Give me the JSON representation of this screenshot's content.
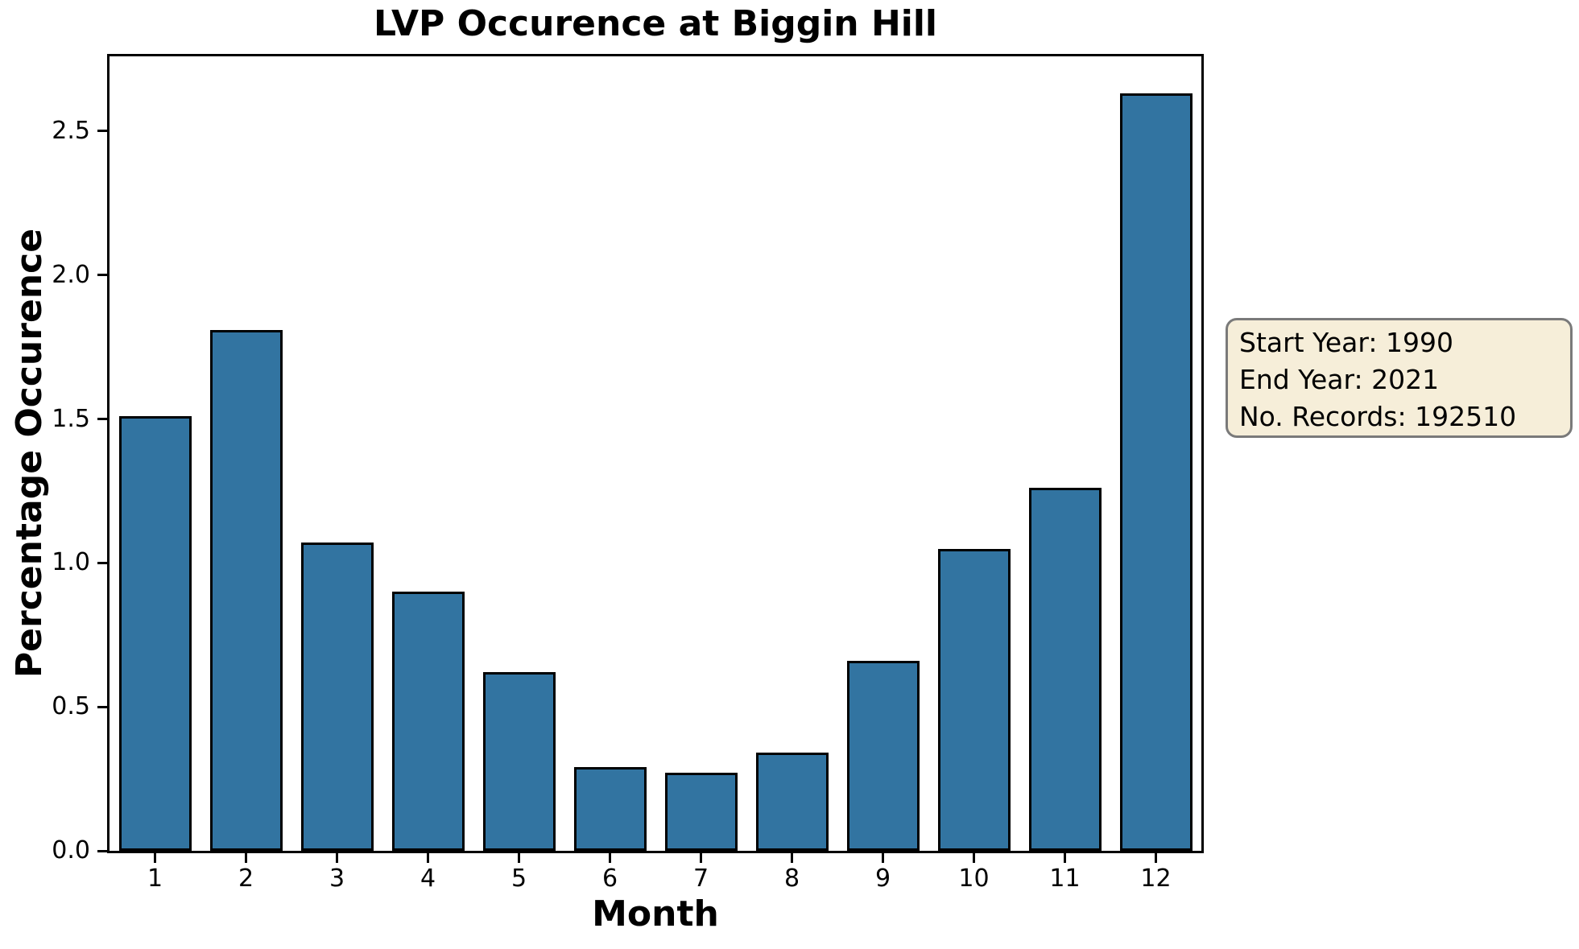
{
  "chart_data": {
    "type": "bar",
    "title": "LVP Occurence at Biggin Hill",
    "xlabel": "Month",
    "ylabel": "Percentage Occurence",
    "categories": [
      "1",
      "2",
      "3",
      "4",
      "5",
      "6",
      "7",
      "8",
      "9",
      "10",
      "11",
      "12"
    ],
    "values": [
      1.51,
      1.81,
      1.07,
      0.9,
      0.62,
      0.29,
      0.27,
      0.34,
      0.66,
      1.05,
      1.26,
      2.63
    ],
    "ylim": [
      0,
      2.76
    ],
    "yticks": [
      0,
      0.5,
      1.0,
      1.5,
      2.0,
      2.5
    ],
    "ytick_labels": [
      "0.0",
      "0.5",
      "1.0",
      "1.5",
      "2.0",
      "2.5"
    ],
    "grid": false,
    "legend_position": "none",
    "bar_color": "#3274a1",
    "bar_edge_color": "#000000"
  },
  "annotation_box": {
    "line1": "Start Year: 1990",
    "line2": "End Year: 2021",
    "line3": "No. Records: 192510",
    "background": "#f6eed9",
    "border_color": "#7a7a7a"
  }
}
